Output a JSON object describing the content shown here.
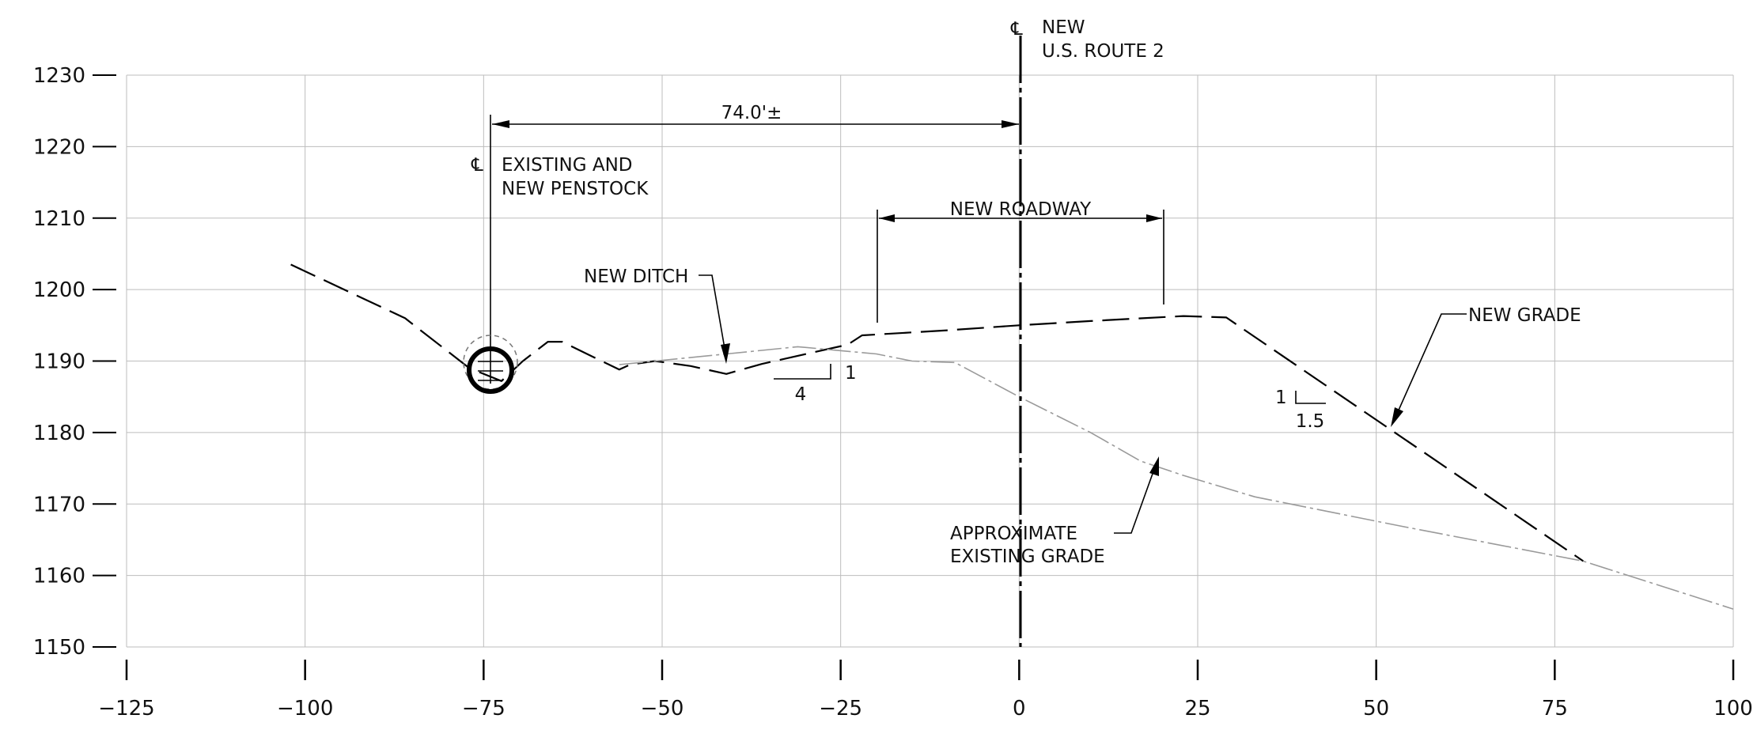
{
  "chart_data": {
    "type": "line",
    "title": "",
    "xlabel": "",
    "ylabel": "",
    "xlim": [
      -125,
      100
    ],
    "ylim": [
      1150,
      1230
    ],
    "x_ticks": [
      "-125",
      "-100",
      "-75",
      "-50",
      "-25",
      "0",
      "25",
      "50",
      "75",
      "100"
    ],
    "y_ticks": [
      "1150",
      "1160",
      "1170",
      "1180",
      "1190",
      "1200",
      "1210",
      "1220",
      "1230"
    ],
    "grid": true,
    "series": [
      {
        "style": "dashed-black",
        "points": [
          [
            -102,
            1203.5
          ],
          [
            -86,
            1196
          ],
          [
            -77,
            1189
          ],
          [
            -72.5,
            1187.2
          ],
          [
            -69.5,
            1190
          ],
          [
            -66,
            1192.7
          ],
          [
            -64,
            1192.7
          ],
          [
            -59.5,
            1190.5
          ],
          [
            -56,
            1188.8
          ],
          [
            -54.5,
            1189.5
          ],
          [
            -51,
            1190
          ],
          [
            -46,
            1189.3
          ],
          [
            -41,
            1188.2
          ],
          [
            -36,
            1189.6
          ],
          [
            -24,
            1192.3
          ],
          [
            -22,
            1193.6
          ],
          [
            -10,
            1194.3
          ],
          [
            0,
            1195
          ],
          [
            10,
            1195.6
          ],
          [
            23,
            1196.3
          ],
          [
            29,
            1196.1
          ],
          [
            79,
            1162
          ]
        ]
      },
      {
        "style": "gray-dashed",
        "points": [
          [
            -56,
            1189.5
          ],
          [
            -51,
            1190
          ],
          [
            -41,
            1191
          ],
          [
            -31,
            1192
          ],
          [
            -20,
            1191
          ],
          [
            -15,
            1190
          ],
          [
            -9,
            1189.8
          ],
          [
            0,
            1185
          ],
          [
            10,
            1180
          ],
          [
            17,
            1176
          ],
          [
            23,
            1174
          ],
          [
            33,
            1171
          ],
          [
            53,
            1167
          ],
          [
            79,
            1162
          ],
          [
            100,
            1155.3
          ]
        ]
      }
    ],
    "annotations": {
      "cl_route_symbol": "℄",
      "cl_route_line1": "NEW",
      "cl_route_line2": "U.S. ROUTE 2",
      "dimension_74": "74.0'±",
      "cl_penstock_symbol": "℄",
      "cl_penstock_line1": "EXISTING AND",
      "cl_penstock_line2": "NEW PENSTOCK",
      "new_roadway": "NEW ROADWAY",
      "new_ditch": "NEW DITCH",
      "ditch_slope_run": "4",
      "ditch_slope_rise": "1",
      "new_grade": "NEW GRADE",
      "grade_slope_rise": "1",
      "grade_slope_run": "1.5",
      "existing_grade_line1": "APPROXIMATE",
      "existing_grade_line2": "EXISTING GRADE"
    }
  }
}
